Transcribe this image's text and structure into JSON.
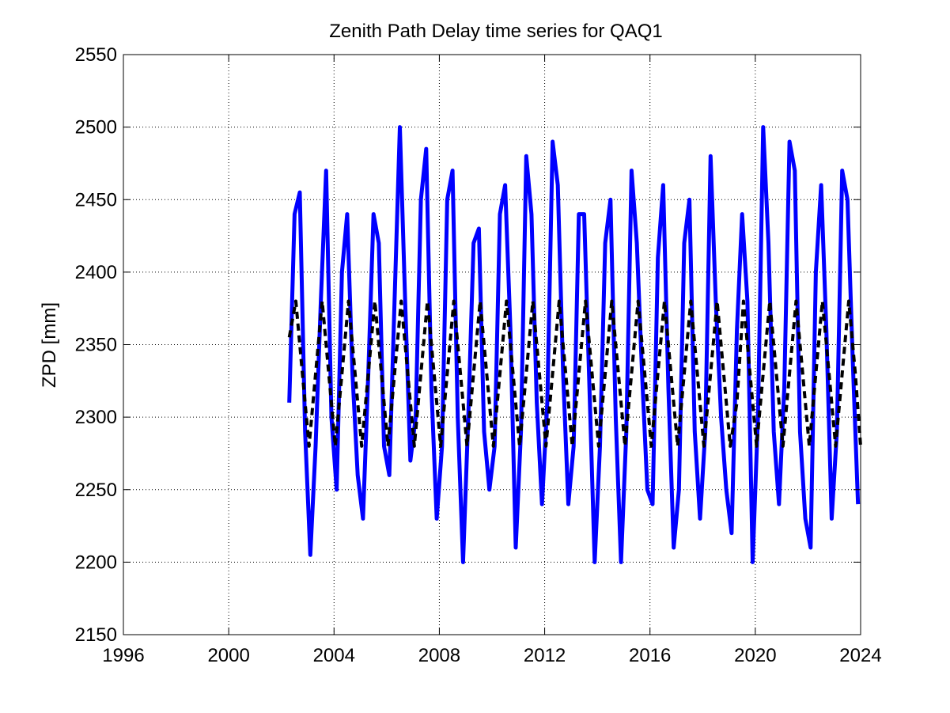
{
  "chart_data": {
    "type": "line",
    "title": "Zenith Path Delay time series for QAQ1",
    "xlabel": "",
    "ylabel": "ZPD [mm]",
    "xlim": [
      1996,
      2024
    ],
    "ylim": [
      2150,
      2550
    ],
    "xticks": [
      "1996",
      "2000",
      "2004",
      "2008",
      "2012",
      "2016",
      "2020",
      "2024"
    ],
    "yticks": [
      "2150",
      "2200",
      "2250",
      "2300",
      "2350",
      "2400",
      "2450",
      "2500",
      "2550"
    ],
    "grid": true,
    "legend": "none",
    "series": [
      {
        "style": "solid",
        "color": "#0000ff",
        "description_values": "observed ZPD, seasonal oscillation ~2210-2500 mm",
        "x": [
          2002.3,
          2002.5,
          2002.7,
          2002.9,
          2003.1,
          2003.3,
          2003.5,
          2003.7,
          2003.9,
          2004.1,
          2004.3,
          2004.5,
          2004.7,
          2004.9,
          2005.1,
          2005.3,
          2005.5,
          2005.7,
          2005.9,
          2006.1,
          2006.3,
          2006.5,
          2006.7,
          2006.9,
          2007.1,
          2007.3,
          2007.5,
          2007.7,
          2007.9,
          2008.1,
          2008.3,
          2008.5,
          2008.7,
          2008.9,
          2009.1,
          2009.3,
          2009.5,
          2009.7,
          2009.9,
          2010.1,
          2010.3,
          2010.5,
          2010.7,
          2010.9,
          2011.1,
          2011.3,
          2011.5,
          2011.7,
          2011.9,
          2012.1,
          2012.3,
          2012.5,
          2012.7,
          2012.9,
          2013.1,
          2013.3,
          2013.5,
          2013.7,
          2013.9,
          2014.1,
          2014.3,
          2014.5,
          2014.7,
          2014.9,
          2015.1,
          2015.3,
          2015.5,
          2015.7,
          2015.9,
          2016.1,
          2016.3,
          2016.5,
          2016.7,
          2016.9,
          2017.1,
          2017.3,
          2017.5,
          2017.7,
          2017.9,
          2018.1,
          2018.3,
          2018.5,
          2018.7,
          2018.9,
          2019.1,
          2019.3,
          2019.5,
          2019.7,
          2019.9,
          2020.1,
          2020.3,
          2020.5,
          2020.7,
          2020.9,
          2021.1,
          2021.3,
          2021.5,
          2021.7,
          2021.9,
          2022.1,
          2022.3,
          2022.5,
          2022.7,
          2022.9,
          2023.1,
          2023.3,
          2023.5,
          2023.7,
          2023.9
        ],
        "y": [
          2310,
          2440,
          2455,
          2290,
          2205,
          2280,
          2380,
          2470,
          2300,
          2250,
          2400,
          2440,
          2330,
          2260,
          2230,
          2330,
          2440,
          2420,
          2280,
          2260,
          2380,
          2500,
          2380,
          2270,
          2300,
          2450,
          2485,
          2320,
          2230,
          2280,
          2450,
          2470,
          2300,
          2200,
          2300,
          2420,
          2430,
          2290,
          2250,
          2280,
          2440,
          2460,
          2360,
          2210,
          2290,
          2480,
          2440,
          2310,
          2240,
          2310,
          2490,
          2460,
          2330,
          2240,
          2280,
          2440,
          2440,
          2320,
          2200,
          2280,
          2420,
          2450,
          2300,
          2200,
          2290,
          2470,
          2420,
          2330,
          2250,
          2240,
          2410,
          2460,
          2320,
          2210,
          2250,
          2420,
          2450,
          2290,
          2230,
          2290,
          2480,
          2380,
          2300,
          2250,
          2220,
          2360,
          2440,
          2380,
          2200,
          2300,
          2500,
          2420,
          2290,
          2240,
          2320,
          2490,
          2470,
          2290,
          2230,
          2210,
          2400,
          2460,
          2360,
          2230,
          2290,
          2470,
          2450,
          2340,
          2240
        ]
      },
      {
        "style": "dashed",
        "color": "#000000",
        "description_values": "seasonal model fit, oscillating 2280-2380 mm",
        "x": [
          2002.3,
          2002.55,
          2002.8,
          2003.05,
          2003.3,
          2003.55,
          2003.8,
          2004.05,
          2004.3,
          2004.55,
          2004.8,
          2005.05,
          2005.3,
          2005.55,
          2005.8,
          2006.05,
          2006.3,
          2006.55,
          2006.8,
          2007.05,
          2007.3,
          2007.55,
          2007.8,
          2008.05,
          2008.3,
          2008.55,
          2008.8,
          2009.05,
          2009.3,
          2009.55,
          2009.8,
          2010.05,
          2010.3,
          2010.55,
          2010.8,
          2011.05,
          2011.3,
          2011.55,
          2011.8,
          2012.05,
          2012.3,
          2012.55,
          2012.8,
          2013.05,
          2013.3,
          2013.55,
          2013.8,
          2014.05,
          2014.3,
          2014.55,
          2014.8,
          2015.05,
          2015.3,
          2015.55,
          2015.8,
          2016.05,
          2016.3,
          2016.55,
          2016.8,
          2017.05,
          2017.3,
          2017.55,
          2017.8,
          2018.05,
          2018.3,
          2018.55,
          2018.8,
          2019.05,
          2019.3,
          2019.55,
          2019.8,
          2020.05,
          2020.3,
          2020.55,
          2020.8,
          2021.05,
          2021.3,
          2021.55,
          2021.8,
          2022.05,
          2022.3,
          2022.55,
          2022.8,
          2023.05,
          2023.3,
          2023.55,
          2023.8,
          2024.0
        ],
        "y": [
          2355,
          2380,
          2330,
          2280,
          2330,
          2380,
          2330,
          2280,
          2330,
          2380,
          2330,
          2280,
          2330,
          2380,
          2330,
          2280,
          2330,
          2380,
          2330,
          2280,
          2330,
          2380,
          2330,
          2280,
          2330,
          2380,
          2330,
          2280,
          2330,
          2380,
          2330,
          2280,
          2330,
          2380,
          2330,
          2280,
          2330,
          2380,
          2330,
          2280,
          2330,
          2380,
          2330,
          2280,
          2330,
          2380,
          2330,
          2280,
          2330,
          2380,
          2330,
          2280,
          2330,
          2380,
          2330,
          2280,
          2330,
          2380,
          2330,
          2280,
          2330,
          2380,
          2330,
          2280,
          2330,
          2380,
          2330,
          2280,
          2310,
          2380,
          2330,
          2280,
          2330,
          2380,
          2330,
          2280,
          2330,
          2380,
          2330,
          2280,
          2330,
          2380,
          2330,
          2280,
          2330,
          2380,
          2330,
          2280
        ]
      }
    ]
  }
}
